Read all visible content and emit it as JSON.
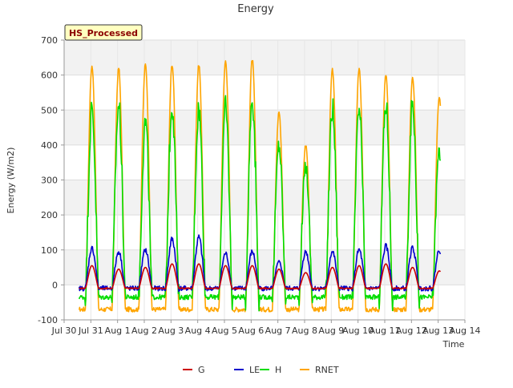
{
  "chart_data": {
    "type": "line",
    "title": "Energy",
    "xlabel": "Time",
    "ylabel": "Energy (W/m2)",
    "badge": "HS_Processed",
    "ylim": [
      -100,
      700
    ],
    "yticks": [
      -100,
      0,
      100,
      200,
      300,
      400,
      500,
      600,
      700
    ],
    "xlim_days": [
      0,
      15
    ],
    "xtick_labels": [
      "Jul 30",
      "Jul 31",
      "Aug 1",
      "Aug 2",
      "Aug 3",
      "Aug 4",
      "Aug 5",
      "Aug 6",
      "Aug 7",
      "Aug 8",
      "Aug 9",
      "Aug 10",
      "Aug 11",
      "Aug 12",
      "Aug 13",
      "Aug 14"
    ],
    "x_start": "Jul 30",
    "x_end": "Aug 13",
    "legend_position": "bottom",
    "grid": true,
    "series": [
      {
        "name": "G",
        "color": "#cc0000",
        "night": -10,
        "daily_peaks": [
          55,
          45,
          50,
          60,
          60,
          55,
          55,
          45,
          35,
          50,
          55,
          60,
          50,
          40
        ]
      },
      {
        "name": "LE",
        "color": "#0000cc",
        "night": -10,
        "daily_peaks": [
          105,
          95,
          100,
          130,
          135,
          90,
          95,
          65,
          95,
          95,
          100,
          110,
          105,
          100
        ]
      },
      {
        "name": "H",
        "color": "#00dd00",
        "night": -35,
        "daily_peaks": [
          500,
          515,
          465,
          515,
          505,
          505,
          535,
          400,
          340,
          505,
          500,
          515,
          515,
          385
        ]
      },
      {
        "name": "RNET",
        "color": "#ffa500",
        "night": -70,
        "daily_peaks": [
          625,
          620,
          630,
          630,
          630,
          640,
          645,
          495,
          400,
          615,
          620,
          600,
          595,
          540
        ]
      }
    ]
  }
}
